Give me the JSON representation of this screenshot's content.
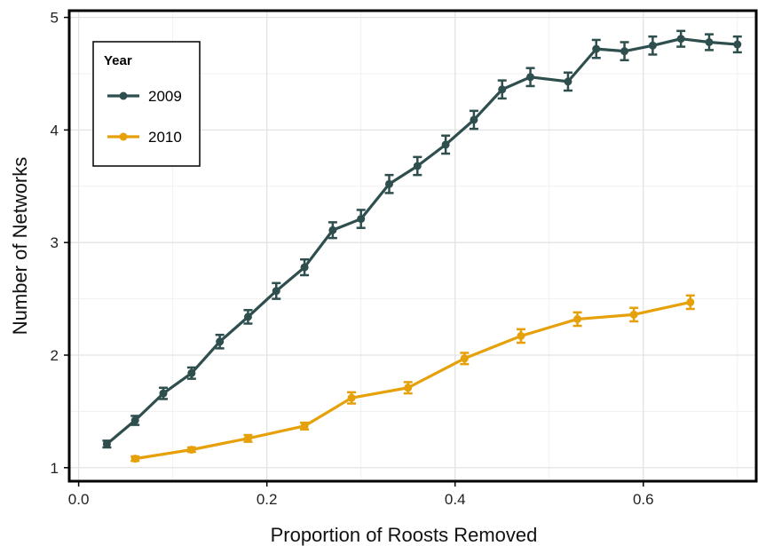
{
  "chart_data": {
    "type": "line",
    "xlabel": "Proportion of Roosts Removed",
    "ylabel": "Number of Networks",
    "xlim": [
      -0.01,
      0.72
    ],
    "ylim": [
      0.88,
      5.06
    ],
    "xticks": [
      0.0,
      0.2,
      0.4,
      0.6
    ],
    "xtick_labels": [
      "0.0",
      "0.2",
      "0.4",
      "0.6"
    ],
    "yticks": [
      1,
      2,
      3,
      4,
      5
    ],
    "ytick_labels": [
      "1",
      "2",
      "3",
      "4",
      "5"
    ],
    "grid": true,
    "error_bars": true,
    "legend": {
      "title": "Year",
      "placement": "top-left"
    },
    "series": [
      {
        "name": "2009",
        "color": "#2f4f4f",
        "x": [
          0.03,
          0.06,
          0.09,
          0.12,
          0.15,
          0.18,
          0.21,
          0.24,
          0.27,
          0.3,
          0.33,
          0.36,
          0.39,
          0.42,
          0.45,
          0.48,
          0.52,
          0.55,
          0.58,
          0.61,
          0.64,
          0.67,
          0.7
        ],
        "y": [
          1.21,
          1.42,
          1.66,
          1.84,
          2.12,
          2.34,
          2.57,
          2.78,
          3.11,
          3.21,
          3.52,
          3.68,
          3.87,
          4.09,
          4.36,
          4.47,
          4.43,
          4.72,
          4.7,
          4.75,
          4.81,
          4.78,
          4.76
        ],
        "err": [
          0.03,
          0.04,
          0.05,
          0.05,
          0.06,
          0.06,
          0.07,
          0.07,
          0.07,
          0.08,
          0.08,
          0.08,
          0.08,
          0.08,
          0.08,
          0.08,
          0.08,
          0.08,
          0.08,
          0.08,
          0.07,
          0.07,
          0.07
        ]
      },
      {
        "name": "2010",
        "color": "#e6a00a",
        "x": [
          0.06,
          0.12,
          0.18,
          0.24,
          0.29,
          0.35,
          0.41,
          0.47,
          0.53,
          0.59,
          0.65
        ],
        "y": [
          1.08,
          1.16,
          1.26,
          1.37,
          1.62,
          1.71,
          1.97,
          2.17,
          2.32,
          2.36,
          2.47
        ],
        "err": [
          0.02,
          0.02,
          0.03,
          0.03,
          0.05,
          0.05,
          0.05,
          0.06,
          0.06,
          0.06,
          0.06
        ]
      }
    ]
  }
}
